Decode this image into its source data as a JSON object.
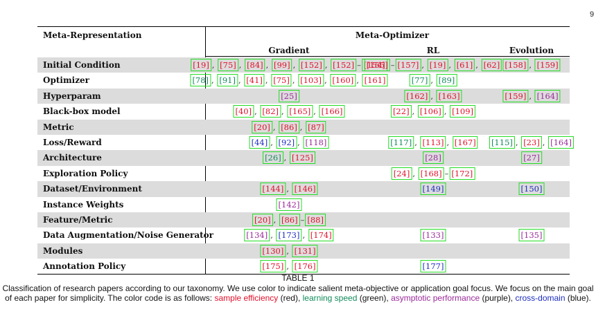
{
  "page_number": "9",
  "table": {
    "header_left": "Meta-Representation",
    "header_group": "Meta-Optimizer",
    "sub_headers": [
      "Gradient",
      "RL",
      "Evolution"
    ],
    "rows": [
      {
        "label": "Initial Condition",
        "shaded": true,
        "cells": [
          [
            {
              "t": "19",
              "c": "red"
            },
            {
              "s": ", "
            },
            {
              "t": "75",
              "c": "red"
            },
            {
              "s": ", "
            },
            {
              "t": "84",
              "c": "red"
            },
            {
              "s": ", "
            },
            {
              "t": "99",
              "c": "red"
            },
            {
              "s": ", "
            },
            {
              "t": "152",
              "c": "red"
            },
            {
              "s": ", "
            },
            {
              "t": "152",
              "c": "red"
            },
            {
              "s": "–"
            },
            {
              "t": "154",
              "c": "red"
            }
          ],
          [
            {
              "t": "155",
              "c": "red"
            },
            {
              "s": "–"
            },
            {
              "t": "157",
              "c": "red"
            },
            {
              "s": ", "
            },
            {
              "t": "19",
              "c": "red"
            },
            {
              "s": ", "
            },
            {
              "t": "61",
              "c": "red"
            },
            {
              "s": ", "
            },
            {
              "t": "62",
              "c": "red"
            }
          ],
          [
            {
              "t": "158",
              "c": "red"
            },
            {
              "s": ", "
            },
            {
              "t": "159",
              "c": "red"
            }
          ]
        ]
      },
      {
        "label": "Optimizer",
        "shaded": false,
        "cells": [
          [
            {
              "t": "78",
              "c": "green"
            },
            {
              "s": ", "
            },
            {
              "t": "91",
              "c": "green"
            },
            {
              "s": ", "
            },
            {
              "t": "41",
              "c": "red"
            },
            {
              "s": ", "
            },
            {
              "t": "75",
              "c": "red"
            },
            {
              "s": ", "
            },
            {
              "t": "103",
              "c": "red"
            },
            {
              "s": ", "
            },
            {
              "t": "160",
              "c": "red"
            },
            {
              "s": ", "
            },
            {
              "t": "161",
              "c": "red"
            }
          ],
          [
            {
              "t": "77",
              "c": "green"
            },
            {
              "s": ", "
            },
            {
              "t": "89",
              "c": "green"
            }
          ],
          []
        ]
      },
      {
        "label": "Hyperparam",
        "shaded": true,
        "cells": [
          [
            {
              "t": "25",
              "c": "purple"
            }
          ],
          [
            {
              "t": "162",
              "c": "red"
            },
            {
              "s": ", "
            },
            {
              "t": "163",
              "c": "red"
            }
          ],
          [
            {
              "t": "159",
              "c": "red"
            },
            {
              "s": ", "
            },
            {
              "t": "164",
              "c": "purple"
            }
          ]
        ]
      },
      {
        "label": "Black-box model",
        "shaded": false,
        "cells": [
          [
            {
              "t": "40",
              "c": "red"
            },
            {
              "s": ", "
            },
            {
              "t": "82",
              "c": "red"
            },
            {
              "s": ", "
            },
            {
              "t": "165",
              "c": "red"
            },
            {
              "s": ", "
            },
            {
              "t": "166",
              "c": "red"
            }
          ],
          [
            {
              "t": "22",
              "c": "red"
            },
            {
              "s": ", "
            },
            {
              "t": "106",
              "c": "red"
            },
            {
              "s": ", "
            },
            {
              "t": "109",
              "c": "red"
            }
          ],
          []
        ]
      },
      {
        "label": "Metric",
        "shaded": true,
        "cells": [
          [
            {
              "t": "20",
              "c": "red"
            },
            {
              "s": ", "
            },
            {
              "t": "86",
              "c": "red"
            },
            {
              "s": ", "
            },
            {
              "t": "87",
              "c": "red"
            }
          ],
          [],
          []
        ]
      },
      {
        "label": "Loss/Reward",
        "shaded": false,
        "cells": [
          [
            {
              "t": "44",
              "c": "blue"
            },
            {
              "s": ", "
            },
            {
              "t": "92",
              "c": "blue"
            },
            {
              "s": ", "
            },
            {
              "t": "118",
              "c": "purple"
            }
          ],
          [
            {
              "t": "117",
              "c": "green"
            },
            {
              "s": ", "
            },
            {
              "t": "113",
              "c": "red"
            },
            {
              "s": ", "
            },
            {
              "t": "167",
              "c": "red"
            }
          ],
          [
            {
              "t": "115",
              "c": "green"
            },
            {
              "s": ", "
            },
            {
              "t": "23",
              "c": "red"
            },
            {
              "s": ", "
            },
            {
              "t": "164",
              "c": "purple"
            }
          ]
        ]
      },
      {
        "label": "Architecture",
        "shaded": true,
        "cells": [
          [
            {
              "t": "26",
              "c": "green"
            },
            {
              "s": ", "
            },
            {
              "t": "125",
              "c": "red"
            }
          ],
          [
            {
              "t": "28",
              "c": "purple"
            }
          ],
          [
            {
              "t": "27",
              "c": "purple"
            }
          ]
        ]
      },
      {
        "label": "Exploration Policy",
        "shaded": false,
        "cells": [
          [],
          [
            {
              "t": "24",
              "c": "red"
            },
            {
              "s": ", "
            },
            {
              "t": "168",
              "c": "red"
            },
            {
              "s": "–"
            },
            {
              "t": "172",
              "c": "red"
            }
          ],
          []
        ]
      },
      {
        "label": "Dataset/Environment",
        "shaded": true,
        "cells": [
          [
            {
              "t": "144",
              "c": "red"
            },
            {
              "s": ", "
            },
            {
              "t": "146",
              "c": "red"
            }
          ],
          [
            {
              "t": "149",
              "c": "blue"
            }
          ],
          [
            {
              "t": "150",
              "c": "blue"
            }
          ]
        ]
      },
      {
        "label": "Instance Weights",
        "shaded": false,
        "cells": [
          [
            {
              "t": "142",
              "c": "purple"
            }
          ],
          [],
          []
        ]
      },
      {
        "label": "Feature/Metric",
        "shaded": true,
        "cells": [
          [
            {
              "t": "20",
              "c": "red"
            },
            {
              "s": ", "
            },
            {
              "t": "86",
              "c": "red"
            },
            {
              "s": "–"
            },
            {
              "t": "88",
              "c": "red"
            }
          ],
          [],
          []
        ]
      },
      {
        "label": "Data Augmentation/Noise Generator",
        "shaded": false,
        "cells": [
          [
            {
              "t": "134",
              "c": "purple"
            },
            {
              "s": ", "
            },
            {
              "t": "173",
              "c": "blue"
            },
            {
              "s": ", "
            },
            {
              "t": "174",
              "c": "red"
            }
          ],
          [
            {
              "t": "133",
              "c": "purple"
            }
          ],
          [
            {
              "t": "135",
              "c": "purple"
            }
          ]
        ]
      },
      {
        "label": "Modules",
        "shaded": true,
        "cells": [
          [
            {
              "t": "130",
              "c": "red"
            },
            {
              "s": ", "
            },
            {
              "t": "131",
              "c": "red"
            }
          ],
          [],
          []
        ]
      },
      {
        "label": "Annotation Policy",
        "shaded": false,
        "cells": [
          [
            {
              "t": "175",
              "c": "red"
            },
            {
              "s": ", "
            },
            {
              "t": "176",
              "c": "red"
            }
          ],
          [
            {
              "t": "177",
              "c": "blue"
            }
          ],
          []
        ]
      }
    ]
  },
  "caption": {
    "label": "TABLE 1",
    "text_1": "Classification of research papers according to our taxonomy. We use color to indicate salient meta-objective or application goal focus. We focus on the main goal of each paper for simplicity. The color code is as follows: ",
    "legend": [
      {
        "text": "sample efficiency",
        "color": "red",
        "suffix": " (red), "
      },
      {
        "text": "learning speed",
        "color": "green",
        "suffix": " (green), "
      },
      {
        "text": "asymptotic performance",
        "color": "purple",
        "suffix": " (purple), "
      },
      {
        "text": "cross-domain",
        "color": "blue",
        "suffix": " (blue)."
      }
    ]
  }
}
